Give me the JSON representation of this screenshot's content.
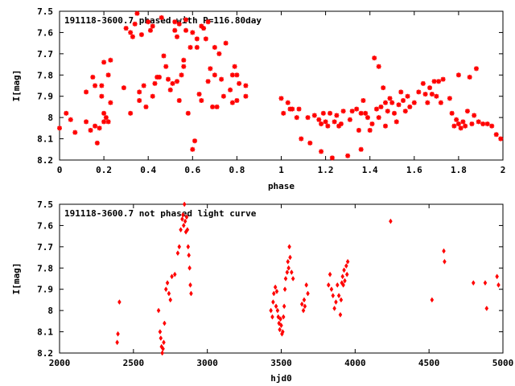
{
  "chart_data": [
    {
      "type": "scatter",
      "title": "191118-3600.7 phased with P=116.80day",
      "xlabel": "phase",
      "ylabel": "I[mag]",
      "xlim": [
        0,
        2
      ],
      "ylim": [
        8.2,
        7.5
      ],
      "y_inverted": true,
      "x_ticks": [
        "0",
        "0.2",
        "0.4",
        "0.6",
        "0.8",
        "1",
        "1.2",
        "1.4",
        "1.6",
        "1.8",
        "2"
      ],
      "y_ticks": [
        "7.5",
        "7.6",
        "7.7",
        "7.8",
        "7.9",
        "8",
        "8.1",
        "8.2"
      ],
      "marker": "star",
      "color": "#ff0000",
      "points": [
        [
          0.0,
          8.05
        ],
        [
          0.03,
          7.98
        ],
        [
          0.05,
          8.01
        ],
        [
          0.07,
          8.07
        ],
        [
          0.12,
          7.88
        ],
        [
          0.12,
          8.02
        ],
        [
          0.14,
          8.06
        ],
        [
          0.15,
          7.81
        ],
        [
          0.16,
          8.04
        ],
        [
          0.16,
          7.85
        ],
        [
          0.17,
          8.12
        ],
        [
          0.18,
          8.05
        ],
        [
          0.19,
          7.9
        ],
        [
          0.19,
          7.85
        ],
        [
          0.2,
          8.02
        ],
        [
          0.2,
          7.98
        ],
        [
          0.2,
          7.74
        ],
        [
          0.21,
          8.0
        ],
        [
          0.22,
          8.02
        ],
        [
          0.22,
          7.8
        ],
        [
          0.23,
          7.93
        ],
        [
          0.23,
          7.73
        ],
        [
          0.29,
          7.86
        ],
        [
          0.3,
          7.58
        ],
        [
          0.32,
          7.6
        ],
        [
          0.32,
          7.98
        ],
        [
          0.33,
          7.62
        ],
        [
          0.34,
          7.56
        ],
        [
          0.35,
          7.51
        ],
        [
          0.36,
          7.92
        ],
        [
          0.36,
          7.88
        ],
        [
          0.37,
          7.61
        ],
        [
          0.38,
          7.85
        ],
        [
          0.39,
          7.95
        ],
        [
          0.4,
          7.55
        ],
        [
          0.41,
          7.59
        ],
        [
          0.42,
          7.57
        ],
        [
          0.42,
          7.9
        ],
        [
          0.43,
          7.84
        ],
        [
          0.44,
          7.81
        ],
        [
          0.45,
          7.81
        ],
        [
          0.46,
          7.53
        ],
        [
          0.47,
          7.71
        ],
        [
          0.48,
          7.76
        ],
        [
          0.49,
          7.82
        ],
        [
          0.5,
          7.87
        ],
        [
          0.51,
          7.84
        ],
        [
          0.52,
          7.59
        ],
        [
          0.52,
          7.55
        ],
        [
          0.53,
          7.62
        ],
        [
          0.53,
          7.83
        ],
        [
          0.54,
          7.56
        ],
        [
          0.54,
          7.92
        ],
        [
          0.55,
          7.8
        ],
        [
          0.56,
          7.76
        ],
        [
          0.56,
          7.73
        ],
        [
          0.57,
          7.59
        ],
        [
          0.57,
          7.54
        ],
        [
          0.58,
          7.98
        ],
        [
          0.59,
          7.67
        ],
        [
          0.6,
          7.6
        ],
        [
          0.6,
          8.15
        ],
        [
          0.61,
          8.11
        ],
        [
          0.62,
          7.67
        ],
        [
          0.62,
          7.63
        ],
        [
          0.63,
          7.89
        ],
        [
          0.64,
          7.92
        ],
        [
          0.64,
          7.57
        ],
        [
          0.65,
          7.58
        ],
        [
          0.66,
          7.63
        ],
        [
          0.67,
          7.55
        ],
        [
          0.67,
          7.83
        ],
        [
          0.68,
          7.77
        ],
        [
          0.69,
          7.95
        ],
        [
          0.7,
          7.67
        ],
        [
          0.7,
          7.8
        ],
        [
          0.71,
          7.95
        ],
        [
          0.72,
          7.7
        ],
        [
          0.73,
          7.82
        ],
        [
          0.74,
          7.9
        ],
        [
          0.75,
          7.65
        ],
        [
          0.77,
          7.87
        ],
        [
          0.78,
          7.8
        ],
        [
          0.78,
          7.93
        ],
        [
          0.79,
          7.76
        ],
        [
          0.8,
          7.8
        ],
        [
          0.8,
          7.92
        ],
        [
          0.81,
          7.84
        ],
        [
          0.84,
          7.85
        ],
        [
          0.84,
          7.9
        ],
        [
          1.0,
          7.91
        ],
        [
          1.01,
          7.98
        ],
        [
          1.03,
          7.93
        ],
        [
          1.04,
          7.96
        ],
        [
          1.05,
          7.96
        ],
        [
          1.07,
          8.0
        ],
        [
          1.08,
          7.96
        ],
        [
          1.09,
          8.1
        ],
        [
          1.12,
          8.0
        ],
        [
          1.13,
          8.12
        ],
        [
          1.15,
          7.99
        ],
        [
          1.17,
          8.01
        ],
        [
          1.18,
          8.03
        ],
        [
          1.18,
          8.16
        ],
        [
          1.19,
          7.98
        ],
        [
          1.2,
          8.02
        ],
        [
          1.21,
          8.04
        ],
        [
          1.22,
          7.98
        ],
        [
          1.23,
          8.19
        ],
        [
          1.24,
          8.02
        ],
        [
          1.25,
          7.99
        ],
        [
          1.26,
          8.04
        ],
        [
          1.27,
          8.03
        ],
        [
          1.28,
          7.97
        ],
        [
          1.3,
          8.18
        ],
        [
          1.31,
          8.01
        ],
        [
          1.32,
          7.97
        ],
        [
          1.34,
          7.96
        ],
        [
          1.35,
          8.06
        ],
        [
          1.36,
          7.98
        ],
        [
          1.36,
          8.15
        ],
        [
          1.37,
          7.92
        ],
        [
          1.38,
          7.98
        ],
        [
          1.39,
          8.0
        ],
        [
          1.4,
          8.06
        ],
        [
          1.41,
          8.03
        ],
        [
          1.42,
          7.72
        ],
        [
          1.43,
          7.96
        ],
        [
          1.44,
          7.76
        ],
        [
          1.44,
          8.0
        ],
        [
          1.45,
          7.95
        ],
        [
          1.46,
          7.86
        ],
        [
          1.47,
          7.93
        ],
        [
          1.47,
          8.04
        ],
        [
          1.48,
          7.97
        ],
        [
          1.49,
          7.91
        ],
        [
          1.5,
          7.93
        ],
        [
          1.51,
          7.98
        ],
        [
          1.52,
          8.02
        ],
        [
          1.53,
          7.94
        ],
        [
          1.54,
          7.88
        ],
        [
          1.55,
          7.92
        ],
        [
          1.56,
          7.97
        ],
        [
          1.57,
          7.9
        ],
        [
          1.58,
          7.95
        ],
        [
          1.6,
          7.93
        ],
        [
          1.62,
          7.88
        ],
        [
          1.64,
          7.84
        ],
        [
          1.65,
          7.89
        ],
        [
          1.66,
          7.93
        ],
        [
          1.67,
          7.86
        ],
        [
          1.68,
          7.89
        ],
        [
          1.69,
          7.83
        ],
        [
          1.7,
          7.9
        ],
        [
          1.71,
          7.83
        ],
        [
          1.72,
          7.93
        ],
        [
          1.73,
          7.82
        ],
        [
          1.76,
          7.91
        ],
        [
          1.77,
          7.98
        ],
        [
          1.78,
          8.04
        ],
        [
          1.79,
          8.01
        ],
        [
          1.8,
          7.8
        ],
        [
          1.8,
          8.03
        ],
        [
          1.81,
          8.05
        ],
        [
          1.82,
          8.02
        ],
        [
          1.83,
          8.04
        ],
        [
          1.84,
          7.97
        ],
        [
          1.85,
          7.81
        ],
        [
          1.86,
          8.03
        ],
        [
          1.87,
          7.99
        ],
        [
          1.88,
          7.77
        ],
        [
          1.89,
          8.02
        ],
        [
          1.91,
          8.03
        ],
        [
          1.93,
          8.03
        ],
        [
          1.95,
          8.04
        ],
        [
          1.97,
          8.08
        ],
        [
          1.99,
          8.1
        ]
      ]
    },
    {
      "type": "scatter",
      "title": "191118-3600.7 not phased light curve",
      "xlabel": "hjd0",
      "ylabel": "I[mag]",
      "xlim": [
        2000,
        5000
      ],
      "ylim": [
        8.2,
        7.5
      ],
      "y_inverted": true,
      "x_ticks": [
        "2000",
        "2500",
        "3000",
        "3500",
        "4000",
        "4500",
        "5000"
      ],
      "y_ticks": [
        "7.5",
        "7.6",
        "7.7",
        "7.8",
        "7.9",
        "8",
        "8.1",
        "8.2"
      ],
      "marker": "diamond",
      "color": "#ff0000",
      "points": [
        [
          2390,
          8.15
        ],
        [
          2395,
          8.11
        ],
        [
          2405,
          7.96
        ],
        [
          2670,
          8.0
        ],
        [
          2680,
          8.1
        ],
        [
          2685,
          8.13
        ],
        [
          2690,
          8.17
        ],
        [
          2695,
          8.2
        ],
        [
          2700,
          8.18
        ],
        [
          2705,
          8.15
        ],
        [
          2710,
          8.06
        ],
        [
          2720,
          7.9
        ],
        [
          2730,
          7.87
        ],
        [
          2740,
          7.92
        ],
        [
          2750,
          7.95
        ],
        [
          2760,
          7.84
        ],
        [
          2780,
          7.83
        ],
        [
          2800,
          7.73
        ],
        [
          2810,
          7.7
        ],
        [
          2820,
          7.62
        ],
        [
          2830,
          7.57
        ],
        [
          2835,
          7.55
        ],
        [
          2840,
          7.6
        ],
        [
          2845,
          7.5
        ],
        [
          2850,
          7.58
        ],
        [
          2855,
          7.63
        ],
        [
          2860,
          7.56
        ],
        [
          2865,
          7.62
        ],
        [
          2870,
          7.7
        ],
        [
          2875,
          7.74
        ],
        [
          2880,
          7.8
        ],
        [
          2885,
          7.88
        ],
        [
          2890,
          7.92
        ],
        [
          3430,
          8.0
        ],
        [
          3440,
          8.03
        ],
        [
          3445,
          7.96
        ],
        [
          3450,
          7.92
        ],
        [
          3460,
          7.89
        ],
        [
          3465,
          7.98
        ],
        [
          3470,
          7.91
        ],
        [
          3475,
          8.0
        ],
        [
          3480,
          8.03
        ],
        [
          3485,
          8.06
        ],
        [
          3490,
          8.09
        ],
        [
          3495,
          8.04
        ],
        [
          3500,
          8.07
        ],
        [
          3505,
          8.11
        ],
        [
          3510,
          8.1
        ],
        [
          3515,
          8.03
        ],
        [
          3520,
          7.98
        ],
        [
          3525,
          7.9
        ],
        [
          3530,
          7.85
        ],
        [
          3540,
          7.82
        ],
        [
          3545,
          7.77
        ],
        [
          3550,
          7.8
        ],
        [
          3555,
          7.7
        ],
        [
          3560,
          7.75
        ],
        [
          3570,
          7.82
        ],
        [
          3580,
          7.85
        ],
        [
          3640,
          7.97
        ],
        [
          3650,
          8.0
        ],
        [
          3655,
          7.95
        ],
        [
          3660,
          7.98
        ],
        [
          3670,
          7.88
        ],
        [
          3680,
          7.92
        ],
        [
          3820,
          7.88
        ],
        [
          3830,
          7.83
        ],
        [
          3840,
          7.9
        ],
        [
          3850,
          7.93
        ],
        [
          3860,
          7.99
        ],
        [
          3870,
          7.96
        ],
        [
          3880,
          7.88
        ],
        [
          3890,
          7.93
        ],
        [
          3900,
          8.02
        ],
        [
          3905,
          7.95
        ],
        [
          3910,
          7.87
        ],
        [
          3915,
          7.84
        ],
        [
          3920,
          7.88
        ],
        [
          3925,
          7.81
        ],
        [
          3930,
          7.86
        ],
        [
          3940,
          7.79
        ],
        [
          3945,
          7.83
        ],
        [
          3950,
          7.77
        ],
        [
          4240,
          7.58
        ],
        [
          4520,
          7.95
        ],
        [
          4600,
          7.72
        ],
        [
          4605,
          7.77
        ],
        [
          4800,
          7.87
        ],
        [
          4880,
          7.87
        ],
        [
          4890,
          7.99
        ],
        [
          4960,
          7.84
        ],
        [
          4970,
          7.88
        ]
      ]
    }
  ]
}
